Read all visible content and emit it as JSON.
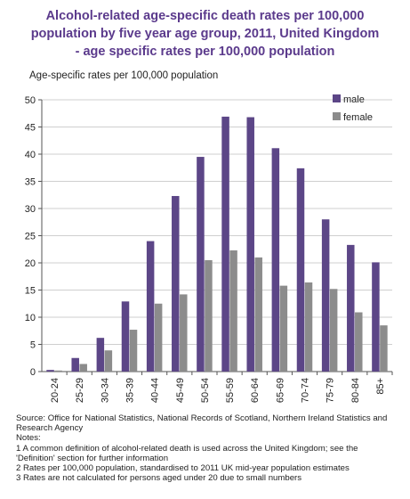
{
  "title_lines": [
    "Alcohol-related age-specific death rates per 100,000",
    "population by five year age group, 2011, United Kingdom",
    "- age specific rates per 100,000 population"
  ],
  "colors": {
    "title": "#5b3a8c",
    "male": "#5c4687",
    "female": "#8c8c8c",
    "grid": "#cfcfcf",
    "axis": "#555555"
  },
  "chart_data": {
    "type": "bar",
    "ylabel": "Age-specific rates per 100,000  population",
    "xlabel": "",
    "categories": [
      "20-24",
      "25-29",
      "30-34",
      "35-39",
      "40-44",
      "45-49",
      "50-54",
      "55-59",
      "60-64",
      "65-69",
      "70-74",
      "75-79",
      "80-84",
      "85+"
    ],
    "series": [
      {
        "name": "male",
        "values": [
          0.3,
          2.5,
          6.2,
          12.9,
          24.0,
          32.3,
          39.5,
          46.9,
          46.8,
          41.1,
          37.4,
          28.0,
          23.3,
          20.1
        ]
      },
      {
        "name": "female",
        "values": [
          0.2,
          1.4,
          3.9,
          7.7,
          12.5,
          14.2,
          20.5,
          22.3,
          21.0,
          15.8,
          16.4,
          15.2,
          10.9,
          8.5
        ]
      }
    ],
    "ylim": [
      0,
      50
    ],
    "yticks": [
      0,
      5,
      10,
      15,
      20,
      25,
      30,
      35,
      40,
      45,
      50
    ],
    "grid": true,
    "legend_position": "top-right"
  },
  "notes": {
    "source": "Source: Office for National Statistics, National Records of Scotland, Northern Ireland Statistics and Research Agency",
    "heading": "Notes:",
    "items": [
      "1  A common definition of alcohol-related death is used across the United Kingdom; see the",
      "'Definition' section for further information",
      "2  Rates per 100,000 population, standardised to 2011 UK mid-year population estimates",
      "3  Rates are not calculated for persons aged under 20 due to small numbers"
    ]
  }
}
